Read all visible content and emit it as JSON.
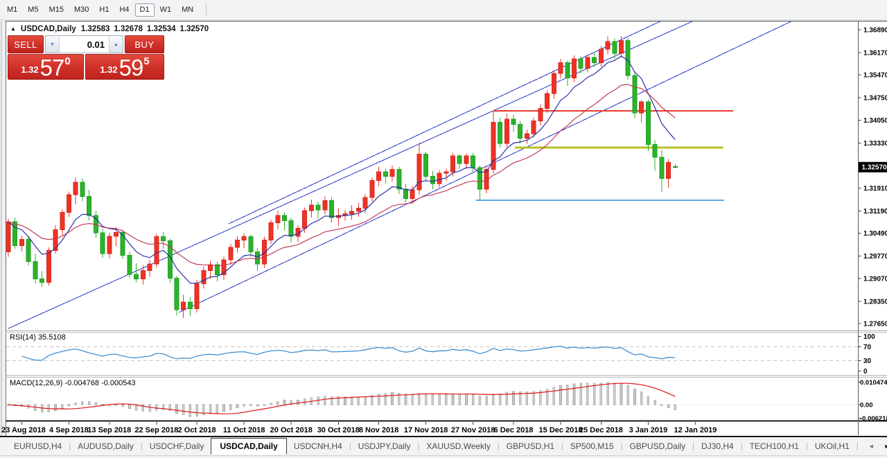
{
  "toolbar": {
    "timeframes": [
      "M1",
      "M5",
      "M15",
      "M30",
      "H1",
      "H4",
      "D1",
      "W1",
      "MN"
    ],
    "active": "D1"
  },
  "chart_header": {
    "collapse_icon": "▲",
    "symbol": "USDCAD,Daily",
    "open": "1.32583",
    "high": "1.32678",
    "low": "1.32534",
    "close": "1.32570"
  },
  "trade_panel": {
    "sell_label": "SELL",
    "buy_label": "BUY",
    "lot_size": "0.01",
    "down_arrow_icon": "▼",
    "up_arrow_icon": "▲",
    "sell_price": {
      "prefix": "1.32",
      "big": "57",
      "sup": "0"
    },
    "buy_price": {
      "prefix": "1.32",
      "big": "59",
      "sup": "5"
    },
    "panel_red": "#d0322a"
  },
  "price_axis": {
    "ticks": [
      "1.36890",
      "1.36170",
      "1.35470",
      "1.34750",
      "1.34050",
      "1.33330",
      "1.31910",
      "1.31190",
      "1.30490",
      "1.29770",
      "1.29070",
      "1.28350",
      "1.27650"
    ],
    "current": "1.32570"
  },
  "time_axis": {
    "labels": [
      {
        "text": "23 Aug 2018",
        "i": 2
      },
      {
        "text": "4 Sep 2018",
        "i": 9
      },
      {
        "text": "13 Sep 2018",
        "i": 15
      },
      {
        "text": "22 Sep 2018",
        "i": 22
      },
      {
        "text": "2 Oct 2018",
        "i": 28
      },
      {
        "text": "11 Oct 2018",
        "i": 35
      },
      {
        "text": "20 Oct 2018",
        "i": 42
      },
      {
        "text": "30 Oct 2018",
        "i": 49
      },
      {
        "text": "8 Nov 2018",
        "i": 55
      },
      {
        "text": "17 Nov 2018",
        "i": 62
      },
      {
        "text": "27 Nov 2018",
        "i": 69
      },
      {
        "text": "6 Dec 2018",
        "i": 75
      },
      {
        "text": "15 Dec 2018",
        "i": 82
      },
      {
        "text": "25 Dec 2018",
        "i": 88
      },
      {
        "text": "3 Jan 2019",
        "i": 95
      },
      {
        "text": "12 Jan 2019",
        "i": 102
      }
    ]
  },
  "chart_data": {
    "type": "candlestick",
    "symbol": "USDCAD",
    "timeframe": "Daily",
    "title": "USDCAD,Daily 1.32583 1.32678 1.32534 1.32570",
    "ylim": [
      1.27452,
      1.37152
    ],
    "colors": {
      "up": "#ef3226",
      "down": "#2db22d",
      "up_stroke": "#d6281e",
      "down_stroke": "#1fa01f"
    },
    "candles": [
      [
        1.299,
        1.3095,
        1.2975,
        1.3085
      ],
      [
        1.3085,
        1.3098,
        1.3,
        1.301
      ],
      [
        1.301,
        1.3042,
        1.2992,
        1.303
      ],
      [
        1.303,
        1.3038,
        1.2948,
        1.296
      ],
      [
        1.296,
        1.2985,
        1.289,
        1.2905
      ],
      [
        1.2905,
        1.293,
        1.288,
        1.2895
      ],
      [
        1.2895,
        1.3005,
        1.2885,
        1.2995
      ],
      [
        1.2995,
        1.3075,
        1.2985,
        1.306
      ],
      [
        1.306,
        1.3125,
        1.304,
        1.3115
      ],
      [
        1.3115,
        1.318,
        1.31,
        1.317
      ],
      [
        1.317,
        1.3225,
        1.314,
        1.321
      ],
      [
        1.321,
        1.3222,
        1.315,
        1.3165
      ],
      [
        1.3165,
        1.3185,
        1.309,
        1.3105
      ],
      [
        1.3105,
        1.312,
        1.3035,
        1.305
      ],
      [
        1.305,
        1.3062,
        1.2972,
        1.2985
      ],
      [
        1.2985,
        1.305,
        1.297,
        1.304
      ],
      [
        1.304,
        1.3068,
        1.3008,
        1.3052
      ],
      [
        1.3052,
        1.306,
        1.2968,
        1.298
      ],
      [
        1.298,
        1.2992,
        1.2908,
        1.292
      ],
      [
        1.292,
        1.2955,
        1.2895,
        1.2905
      ],
      [
        1.2905,
        1.2948,
        1.2888,
        1.2932
      ],
      [
        1.2932,
        1.2965,
        1.2912,
        1.2952
      ],
      [
        1.2952,
        1.3048,
        1.294,
        1.3038
      ],
      [
        1.3038,
        1.3052,
        1.3,
        1.3025
      ],
      [
        1.3025,
        1.3032,
        1.2892,
        1.2908
      ],
      [
        1.2908,
        1.2915,
        1.279,
        1.2808
      ],
      [
        1.2808,
        1.2855,
        1.2782,
        1.2832
      ],
      [
        1.2832,
        1.2848,
        1.2788,
        1.2812
      ],
      [
        1.2812,
        1.2902,
        1.28,
        1.289
      ],
      [
        1.289,
        1.2945,
        1.2875,
        1.2932
      ],
      [
        1.2932,
        1.2962,
        1.2905,
        1.295
      ],
      [
        1.295,
        1.296,
        1.2898,
        1.2918
      ],
      [
        1.2918,
        1.2975,
        1.2902,
        1.2965
      ],
      [
        1.2965,
        1.3015,
        1.295,
        1.3005
      ],
      [
        1.3005,
        1.304,
        1.2988,
        1.3028
      ],
      [
        1.3028,
        1.3048,
        1.3002,
        1.3038
      ],
      [
        1.3038,
        1.3045,
        1.2975,
        1.299
      ],
      [
        1.299,
        1.3002,
        1.293,
        1.2952
      ],
      [
        1.2952,
        1.3038,
        1.294,
        1.3028
      ],
      [
        1.3028,
        1.3092,
        1.3015,
        1.3082
      ],
      [
        1.3082,
        1.312,
        1.306,
        1.3105
      ],
      [
        1.3105,
        1.3115,
        1.3058,
        1.3088
      ],
      [
        1.3088,
        1.3098,
        1.302,
        1.304
      ],
      [
        1.304,
        1.3075,
        1.3022,
        1.3065
      ],
      [
        1.3065,
        1.313,
        1.305,
        1.312
      ],
      [
        1.312,
        1.3155,
        1.3098,
        1.3138
      ],
      [
        1.3138,
        1.3148,
        1.3095,
        1.3122
      ],
      [
        1.3122,
        1.3165,
        1.3108,
        1.3152
      ],
      [
        1.3152,
        1.3162,
        1.3082,
        1.3098
      ],
      [
        1.3098,
        1.3128,
        1.3072,
        1.3105
      ],
      [
        1.3105,
        1.3122,
        1.3088,
        1.311
      ],
      [
        1.311,
        1.3138,
        1.3092,
        1.3118
      ],
      [
        1.3118,
        1.3145,
        1.31,
        1.3128
      ],
      [
        1.3128,
        1.3172,
        1.3112,
        1.3162
      ],
      [
        1.3162,
        1.3225,
        1.3148,
        1.3215
      ],
      [
        1.3215,
        1.3258,
        1.3198,
        1.3242
      ],
      [
        1.3242,
        1.3252,
        1.3205,
        1.3228
      ],
      [
        1.3228,
        1.3262,
        1.3212,
        1.325
      ],
      [
        1.325,
        1.3258,
        1.3172,
        1.3188
      ],
      [
        1.3188,
        1.3205,
        1.3145,
        1.3158
      ],
      [
        1.3158,
        1.3198,
        1.3142,
        1.3185
      ],
      [
        1.3185,
        1.3335,
        1.317,
        1.3298
      ],
      [
        1.3298,
        1.3305,
        1.3212,
        1.3228
      ],
      [
        1.3228,
        1.3245,
        1.3188,
        1.3205
      ],
      [
        1.3205,
        1.3248,
        1.3192,
        1.3238
      ],
      [
        1.3238,
        1.3252,
        1.3215,
        1.3242
      ],
      [
        1.3242,
        1.3302,
        1.3228,
        1.3292
      ],
      [
        1.3292,
        1.3298,
        1.3252,
        1.3268
      ],
      [
        1.3268,
        1.33,
        1.3252,
        1.3292
      ],
      [
        1.3292,
        1.3302,
        1.3242,
        1.3255
      ],
      [
        1.3255,
        1.3262,
        1.3152,
        1.3188
      ],
      [
        1.3188,
        1.3262,
        1.3175,
        1.325
      ],
      [
        1.325,
        1.3435,
        1.3238,
        1.3398
      ],
      [
        1.3398,
        1.3412,
        1.3318,
        1.3332
      ],
      [
        1.3332,
        1.3425,
        1.332,
        1.3408
      ],
      [
        1.3408,
        1.3422,
        1.3368,
        1.3392
      ],
      [
        1.3392,
        1.3402,
        1.3332,
        1.3348
      ],
      [
        1.3348,
        1.3375,
        1.333,
        1.3362
      ],
      [
        1.3362,
        1.3412,
        1.335,
        1.3402
      ],
      [
        1.3402,
        1.3455,
        1.3388,
        1.3442
      ],
      [
        1.3442,
        1.3498,
        1.3428,
        1.3488
      ],
      [
        1.3488,
        1.3562,
        1.3472,
        1.3552
      ],
      [
        1.3552,
        1.3598,
        1.3535,
        1.3585
      ],
      [
        1.3585,
        1.3592,
        1.3512,
        1.3538
      ],
      [
        1.3538,
        1.3608,
        1.3525,
        1.3598
      ],
      [
        1.3598,
        1.3605,
        1.3552,
        1.3568
      ],
      [
        1.3568,
        1.3612,
        1.3555,
        1.3602
      ],
      [
        1.3602,
        1.3618,
        1.3572,
        1.3585
      ],
      [
        1.3585,
        1.3638,
        1.3572,
        1.3628
      ],
      [
        1.3628,
        1.3668,
        1.3612,
        1.3652
      ],
      [
        1.3652,
        1.3662,
        1.3598,
        1.3615
      ],
      [
        1.3615,
        1.3669,
        1.3602,
        1.3655
      ],
      [
        1.3655,
        1.3664,
        1.3532,
        1.3545
      ],
      [
        1.3545,
        1.3558,
        1.3412,
        1.3428
      ],
      [
        1.3428,
        1.3468,
        1.3398,
        1.3462
      ],
      [
        1.3462,
        1.347,
        1.3308,
        1.3328
      ],
      [
        1.3328,
        1.3342,
        1.3245,
        1.3288
      ],
      [
        1.3288,
        1.331,
        1.318,
        1.3222
      ],
      [
        1.3222,
        1.3282,
        1.3192,
        1.3272
      ],
      [
        1.32583,
        1.32678,
        1.32534,
        1.3257
      ]
    ],
    "ma_fast": {
      "period": 8,
      "color": "#2a2fa8"
    },
    "ma_slow": {
      "period": 20,
      "color": "#c23a55"
    },
    "trendlines": [
      {
        "name": "uptrend-line-long",
        "i1": 0,
        "p1": 1.27494,
        "i2": 102.2,
        "p2": 1.37217,
        "color": "#2336cb",
        "width": 1
      },
      {
        "name": "channel-upper",
        "i1": 32.7,
        "p1": 1.30786,
        "i2": 97.4,
        "p2": 1.37217,
        "color": "#2336cb",
        "width": 1
      },
      {
        "name": "channel-lower",
        "i1": 25.3,
        "p1": 1.27996,
        "i2": 116.4,
        "p2": 1.37173,
        "color": "#2336cb",
        "width": 1
      }
    ],
    "hlines": [
      {
        "name": "resistance-red",
        "price": 1.3434,
        "i1": 72.0,
        "i2": 107.6,
        "color": "#e8392b",
        "width": 2
      },
      {
        "name": "support-olive",
        "price": 1.3318,
        "i1": 75.2,
        "i2": 106.1,
        "color": "#b5c221",
        "width": 3
      },
      {
        "name": "support-lightblue",
        "price": 1.3153,
        "i1": 69.4,
        "i2": 106.3,
        "color": "#5aabe8",
        "width": 2
      }
    ]
  },
  "rsi_panel": {
    "label": "RSI(14) 35.5108",
    "period": 14,
    "value": 35.5108,
    "levels": [
      70,
      30
    ],
    "axis_labels": [
      {
        "label": "100",
        "value": 100
      },
      {
        "label": "70",
        "value": 70
      },
      {
        "label": "30",
        "value": 30
      },
      {
        "label": "0",
        "value": 0
      }
    ],
    "line_color": "#3f8fd2"
  },
  "macd_panel": {
    "label": "MACD(12,26,9) -0.004768 -0.000543",
    "macd_value": -0.004768,
    "signal_value": -0.000543,
    "axis_labels": [
      {
        "label": "0.010474",
        "value": 0.010474
      },
      {
        "label": "0.00",
        "value": 0
      },
      {
        "label": "-0.006218",
        "value": -0.006218
      }
    ],
    "signal_color": "#de1414",
    "hist_fill": "#c9c9c9",
    "hist_stroke": "#a3a3a3"
  },
  "tabs": {
    "items": [
      "EURUSD,H4",
      "AUDUSD,Daily",
      "USDCHF,Daily",
      "USDCAD,Daily",
      "USDCNH,H4",
      "USDJPY,Daily",
      "XAUUSD,Weekly",
      "GBPUSD,H1",
      "SP500,M15",
      "GBPUSD,Daily",
      "DJ30,H4",
      "TECH100,H1",
      "UKOil,H1"
    ],
    "active": "USDCAD,Daily",
    "scroll_left": "◄",
    "scroll_right": "►"
  }
}
